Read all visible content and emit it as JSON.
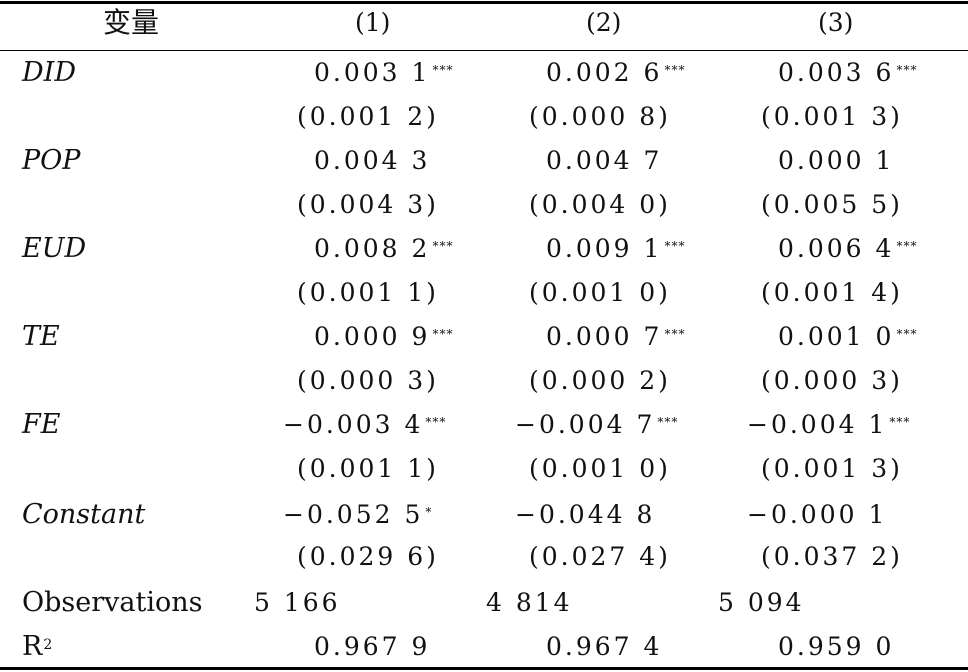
{
  "header": {
    "variable": "变量",
    "col1": "(1)",
    "col2": "(2)",
    "col3": "(3)"
  },
  "rows": [
    {
      "label": "DID",
      "c1": {
        "coef": "0.003 1",
        "stars": "***",
        "se": "(0.001 2)"
      },
      "c2": {
        "coef": "0.002 6",
        "stars": "***",
        "se": "(0.000 8)"
      },
      "c3": {
        "coef": "0.003 6",
        "stars": "***",
        "se": "(0.001 3)"
      }
    },
    {
      "label": "POP",
      "c1": {
        "coef": "0.004 3",
        "stars": "",
        "se": "(0.004 3)"
      },
      "c2": {
        "coef": "0.004 7",
        "stars": "",
        "se": "(0.004 0)"
      },
      "c3": {
        "coef": "0.000 1",
        "stars": "",
        "se": "(0.005 5)"
      }
    },
    {
      "label": "EUD",
      "c1": {
        "coef": "0.008 2",
        "stars": "***",
        "se": "(0.001 1)"
      },
      "c2": {
        "coef": "0.009 1",
        "stars": "***",
        "se": "(0.001 0)"
      },
      "c3": {
        "coef": "0.006 4",
        "stars": "***",
        "se": "(0.001 4)"
      }
    },
    {
      "label": "TE",
      "c1": {
        "coef": "0.000 9",
        "stars": "***",
        "se": "(0.000 3)"
      },
      "c2": {
        "coef": "0.000 7",
        "stars": "***",
        "se": "(0.000 2)"
      },
      "c3": {
        "coef": "0.001 0",
        "stars": "***",
        "se": "(0.000 3)"
      }
    },
    {
      "label": "FE",
      "c1": {
        "coef": "−0.003 4",
        "stars": "***",
        "se": "(0.001 1)"
      },
      "c2": {
        "coef": "−0.004 7",
        "stars": "***",
        "se": "(0.001 0)"
      },
      "c3": {
        "coef": "−0.004 1",
        "stars": "***",
        "se": "(0.001 3)"
      }
    },
    {
      "label": "Constant",
      "c1": {
        "coef": "−0.052 5",
        "stars": "*",
        "se": "(0.029 6)"
      },
      "c2": {
        "coef": "−0.044 8",
        "stars": "",
        "se": "(0.027 4)"
      },
      "c3": {
        "coef": "−0.000 1",
        "stars": "",
        "se": "(0.037 2)"
      }
    }
  ],
  "observations": {
    "label": "Observations",
    "c1": "5 166",
    "c2": "4 814",
    "c3": "5 094"
  },
  "r2": {
    "label": "R",
    "sup": "2",
    "c1": "0.967 9",
    "c2": "0.967 4",
    "c3": "0.959 0"
  }
}
